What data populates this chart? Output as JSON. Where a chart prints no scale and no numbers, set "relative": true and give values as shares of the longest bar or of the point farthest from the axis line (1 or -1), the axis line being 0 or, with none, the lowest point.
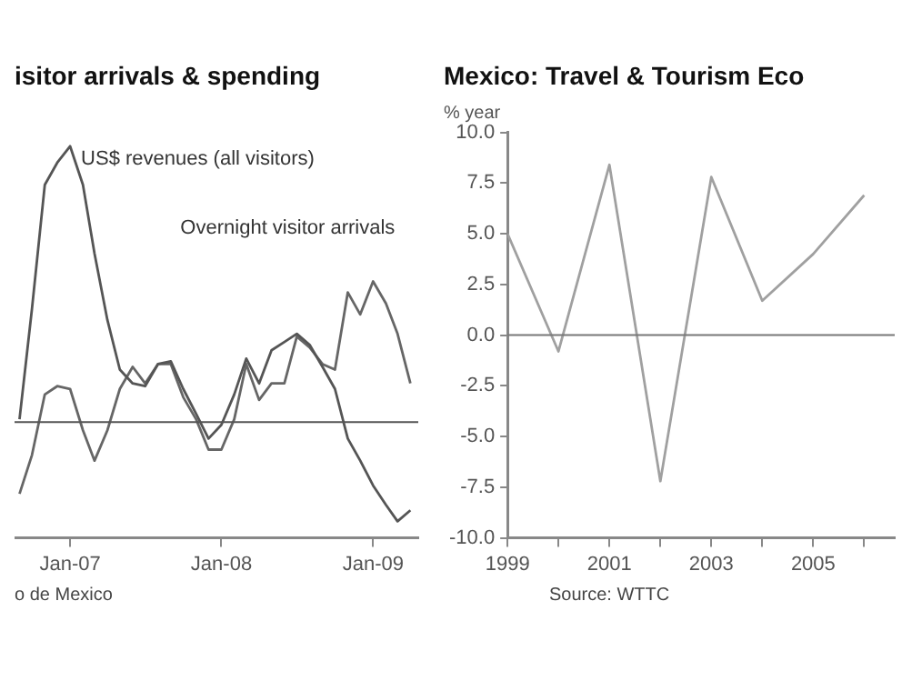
{
  "chart_data": [
    {
      "type": "line",
      "title": "isitor arrivals & spending",
      "relative": true,
      "legend": false,
      "grid": false,
      "marker": "none",
      "x": [
        "2006-09",
        "2006-10",
        "2006-11",
        "2006-12",
        "2007-01",
        "2007-02",
        "2007-03",
        "2007-04",
        "2007-05",
        "2007-06",
        "2007-07",
        "2007-08",
        "2007-09",
        "2007-10",
        "2007-11",
        "2007-12",
        "2008-01",
        "2008-02",
        "2008-03",
        "2008-04",
        "2008-05",
        "2008-06",
        "2008-07",
        "2008-08",
        "2008-09",
        "2008-10",
        "2008-11",
        "2008-12",
        "2009-01",
        "2009-02",
        "2009-03",
        "2009-04"
      ],
      "xlim": [
        "2006-08-20",
        "2009-04-20"
      ],
      "xticks": [
        {
          "value": "2007-01",
          "label": "Jan-07"
        },
        {
          "value": "2008-01",
          "label": "Jan-08"
        },
        {
          "value": "2009-01",
          "label": "Jan-09"
        }
      ],
      "series": [
        {
          "name": "US$ revenues (all visitors)",
          "color": "#555555",
          "values": [
            0.01,
            0.41,
            0.86,
            0.94,
            1,
            0.86,
            0.61,
            0.37,
            0.19,
            0.14,
            0.13,
            0.21,
            0.22,
            0.12,
            0.03,
            -0.06,
            -0.01,
            0.1,
            0.23,
            0.14,
            0.26,
            0.29,
            0.32,
            0.28,
            0.2,
            0.12,
            -0.06,
            -0.14,
            -0.23,
            -0.3,
            -0.36,
            -0.32
          ]
        },
        {
          "name": "Overnight visitor arrivals",
          "color": "#666666",
          "values": [
            -0.26,
            -0.12,
            0.1,
            0.13,
            0.12,
            -0.03,
            -0.14,
            -0.03,
            0.12,
            0.2,
            0.14,
            0.21,
            0.21,
            0.09,
            0.01,
            -0.1,
            -0.1,
            0.01,
            0.21,
            0.08,
            0.14,
            0.14,
            0.31,
            0.27,
            0.21,
            0.19,
            0.47,
            0.39,
            0.51,
            0.43,
            0.32,
            0.14
          ]
        }
      ],
      "ref_lines": [
        {
          "axis": "y",
          "value": 0,
          "color": "#555555"
        }
      ],
      "annotations": [
        "o de Mexico"
      ]
    },
    {
      "type": "line",
      "title": "Mexico: Travel & Tourism Eco",
      "ylabel": "% year",
      "legend": false,
      "grid": false,
      "marker": "none",
      "x": [
        1999,
        2000,
        2001,
        2002,
        2003,
        2004,
        2005,
        2006
      ],
      "xlim": [
        1999,
        2006.6
      ],
      "xticks": [
        1999,
        {
          "value": 2000,
          "label": null
        },
        2001,
        {
          "value": 2002,
          "label": null
        },
        2003,
        {
          "value": 2004,
          "label": null
        },
        2005,
        {
          "value": 2006,
          "label": null
        }
      ],
      "ylim": [
        -10,
        10
      ],
      "yticks": [
        {
          "value": -10,
          "label": "-10.0"
        },
        {
          "value": -7.5,
          "label": "-7.5"
        },
        {
          "value": -5,
          "label": "-5.0"
        },
        {
          "value": -2.5,
          "label": "-2.5"
        },
        {
          "value": 0,
          "label": "0.0"
        },
        {
          "value": 2.5,
          "label": "2.5"
        },
        {
          "value": 5,
          "label": "5.0"
        },
        {
          "value": 7.5,
          "label": "7.5"
        },
        {
          "value": 10,
          "label": "10.0"
        }
      ],
      "series": [
        {
          "color": "#a0a0a0",
          "values": [
            5.0,
            -0.8,
            8.4,
            -7.2,
            7.8,
            1.7,
            4.0,
            6.9
          ]
        }
      ],
      "ref_lines": [
        {
          "axis": "y",
          "value": 0,
          "color": "#777777"
        }
      ],
      "annotations": [
        "Source: WTTC"
      ]
    }
  ]
}
